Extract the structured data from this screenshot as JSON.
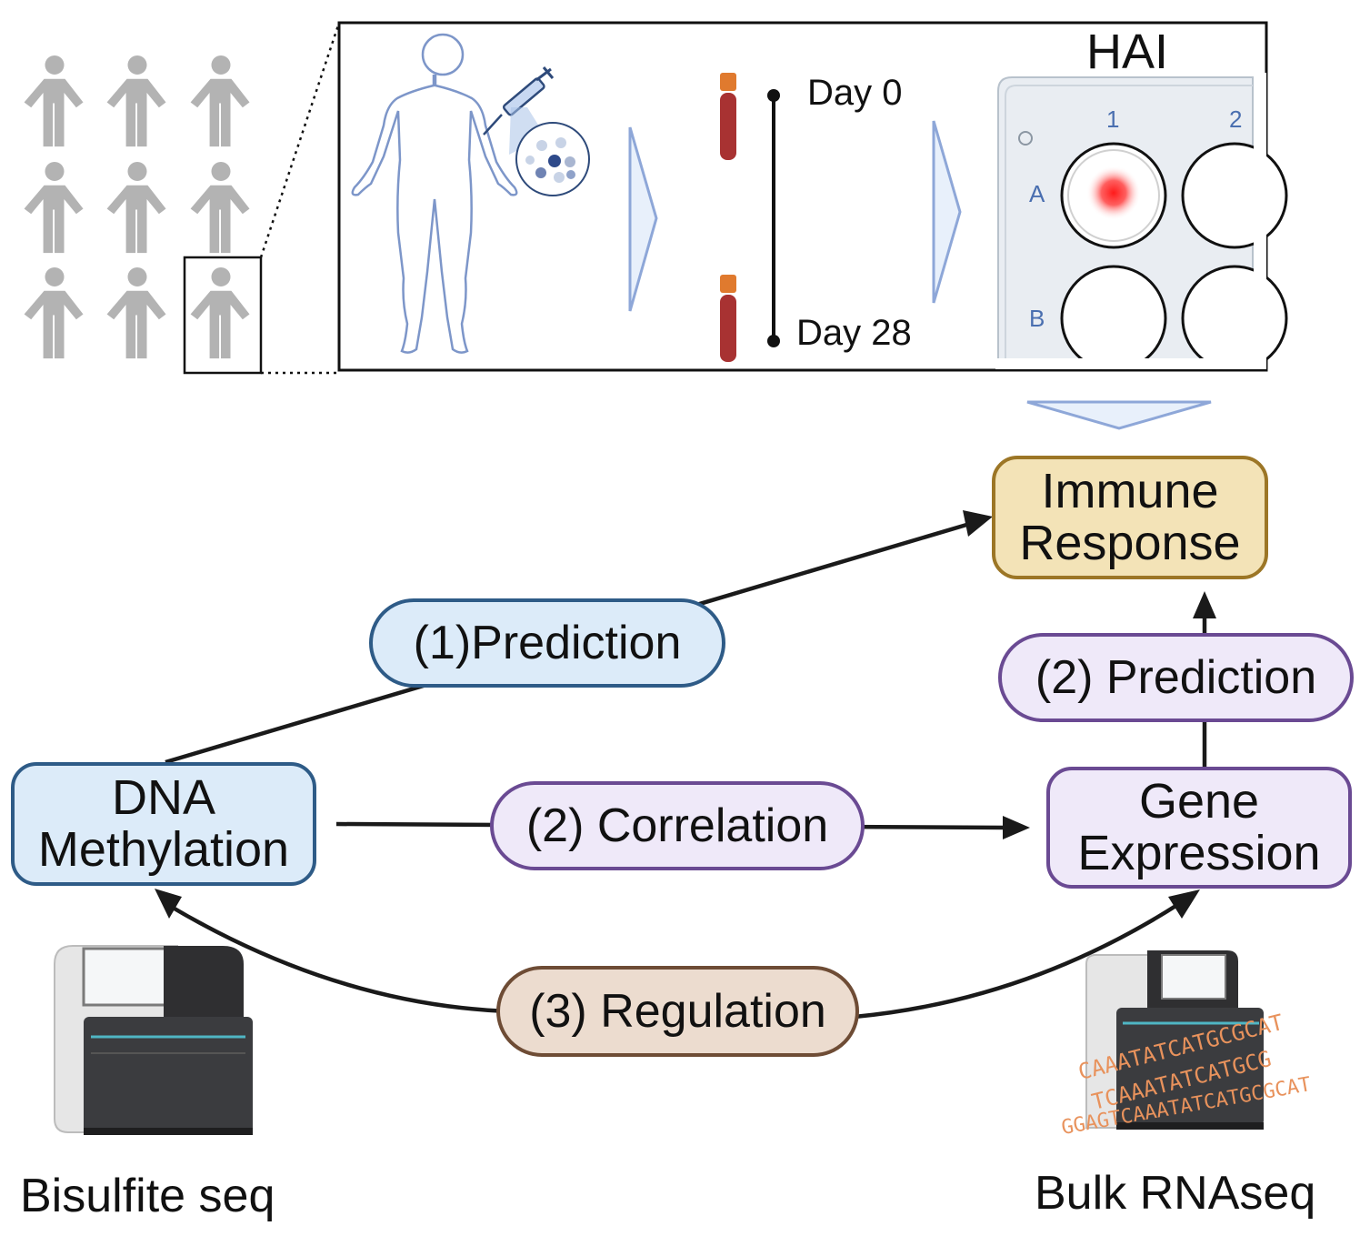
{
  "top_panel": {
    "day_start": "Day 0",
    "day_end": "Day 28",
    "assay": "HAI",
    "plate_columns": [
      "1",
      "2"
    ],
    "plate_rows": [
      "A",
      "B"
    ]
  },
  "nodes": {
    "immune_response": [
      "Immune",
      "Response"
    ],
    "dna_methylation": [
      "DNA",
      "Methylation"
    ],
    "gene_expression": [
      "Gene",
      "Expression"
    ]
  },
  "edges": {
    "prediction_1": "(1)Prediction",
    "prediction_2": "(2) Prediction",
    "correlation": "(2) Correlation",
    "regulation": "(3) Regulation"
  },
  "instruments": {
    "left": "Bisulfite seq",
    "right": "Bulk RNAseq",
    "sequence_lines": [
      "CAAATATCATGCGCAT",
      "TCAAATATCATGCG",
      "GGAGTCAAATATCATGCGCAT"
    ]
  },
  "colors": {
    "blue_fill": "#dcebf9",
    "blue_stroke": "#2e5b87",
    "purple_fill": "#efe9f9",
    "purple_stroke": "#6a4a93",
    "gold_fill": "#f3e3b7",
    "gold_stroke": "#9c7626",
    "brown_fill": "#ecdccf",
    "brown_stroke": "#6e4c35",
    "person_gray": "#b3b3b3",
    "body_outline": "#7d96c9",
    "tube_red": "#a83232",
    "tube_cap": "#e07a2e",
    "seq_orange": "#e8925c"
  }
}
